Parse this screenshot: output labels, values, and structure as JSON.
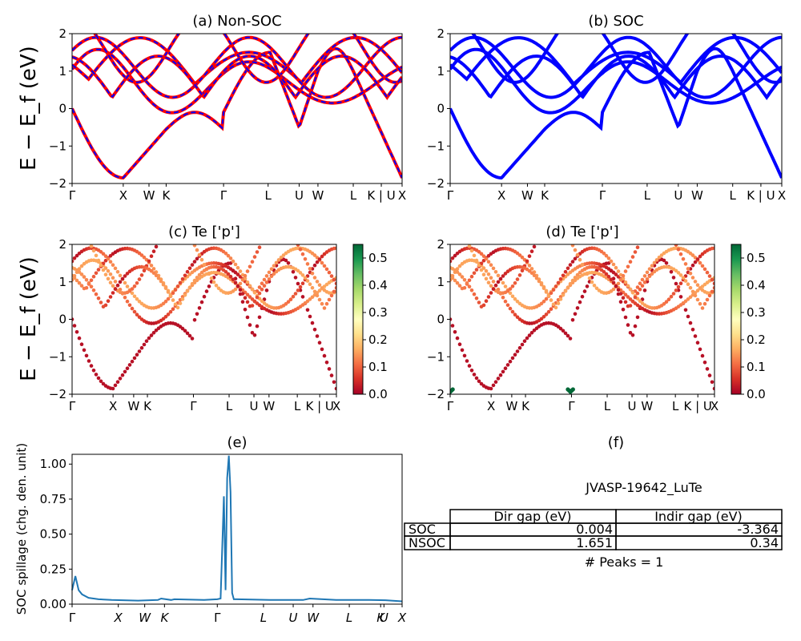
{
  "figure": {
    "band_ylabel": "E − E_f (eV)",
    "spillage_ylabel": "SOC spillage (chg. den. unit)",
    "band_yticks": [
      "−2",
      "−1",
      "0",
      "1",
      "2"
    ]
  },
  "kpath": {
    "labels": [
      "Γ",
      "X",
      "W",
      "K",
      "Γ",
      "L",
      "U",
      "W",
      "L",
      "K | U",
      "X"
    ],
    "positions": [
      0.0,
      0.155,
      0.233,
      0.285,
      0.459,
      0.594,
      0.688,
      0.745,
      0.852,
      0.937,
      1.0
    ]
  },
  "colorbar": {
    "ticks": [
      "0.0",
      "0.1",
      "0.2",
      "0.3",
      "0.4",
      "0.5"
    ],
    "max": 0.55,
    "colors": [
      "#a50026",
      "#d73027",
      "#f46d43",
      "#fdae61",
      "#fee08b",
      "#ffffbf",
      "#d9ef8b",
      "#a6d96a",
      "#66bd63",
      "#1a9850",
      "#006837"
    ]
  },
  "chart_data": [
    {
      "type": "line",
      "title": "(a) Non-SOC",
      "ylim": [
        -2,
        2
      ],
      "xticks": [
        "Γ",
        "X",
        "W",
        "K",
        "Γ",
        "L",
        "U",
        "W",
        "L",
        "K | U",
        "X"
      ],
      "series": [
        {
          "color": "#ff0000",
          "style": "solid",
          "width": 4
        },
        {
          "color": "#0000ff",
          "style": "dashed",
          "width": 2
        }
      ]
    },
    {
      "type": "line",
      "title": "(b) SOC",
      "ylim": [
        -2,
        2
      ],
      "xticks": [
        "Γ",
        "X",
        "W",
        "K",
        "Γ",
        "L",
        "U",
        "W",
        "L",
        "K | U",
        "X"
      ],
      "series": [
        {
          "color": "#0000ff",
          "style": "solid",
          "width": 4
        }
      ]
    },
    {
      "type": "scatter",
      "title": "(c)  Te ['p']",
      "ylim": [
        -2,
        2
      ],
      "xticks": [
        "Γ",
        "X",
        "W",
        "K",
        "Γ",
        "L",
        "U",
        "W",
        "L",
        "K | U",
        "X"
      ],
      "colorbar_range": [
        0.0,
        0.55
      ]
    },
    {
      "type": "scatter",
      "title": "(d) Te ['p']",
      "ylim": [
        -2,
        2
      ],
      "xticks": [
        "Γ",
        "X",
        "W",
        "K",
        "Γ",
        "L",
        "U",
        "W",
        "L",
        "K | U",
        "X"
      ],
      "colorbar_range": [
        0.0,
        0.55
      ]
    },
    {
      "type": "line",
      "title": "(e)",
      "ylabel": "SOC spillage (chg. den. unit)",
      "ylim": [
        0,
        1.07
      ],
      "yticks": [
        "0.00",
        "0.25",
        "0.50",
        "0.75",
        "1.00"
      ],
      "xticks": [
        "Γ",
        "X",
        "W",
        "K",
        "Γ",
        "L",
        "U",
        "W",
        "L",
        "K",
        "U",
        "X"
      ],
      "x": [
        0,
        0.01,
        0.02,
        0.03,
        0.05,
        0.08,
        0.12,
        0.2,
        0.26,
        0.27,
        0.3,
        0.31,
        0.4,
        0.44,
        0.45,
        0.46,
        0.465,
        0.47,
        0.475,
        0.48,
        0.485,
        0.49,
        0.5,
        0.6,
        0.7,
        0.72,
        0.8,
        0.9,
        0.95,
        1.0
      ],
      "values": [
        0.1,
        0.2,
        0.1,
        0.07,
        0.045,
        0.035,
        0.03,
        0.025,
        0.03,
        0.04,
        0.03,
        0.035,
        0.03,
        0.035,
        0.04,
        0.77,
        0.1,
        0.9,
        1.06,
        0.8,
        0.08,
        0.035,
        0.035,
        0.03,
        0.03,
        0.04,
        0.03,
        0.03,
        0.028,
        0.02
      ],
      "color": "#1f77b4"
    },
    {
      "type": "table",
      "title": "(f)",
      "caption": "JVASP-19642_LuTe",
      "columns": [
        "Dir gap (eV)",
        "Indir gap (eV)"
      ],
      "rows": [
        {
          "label": "SOC",
          "values": [
            "0.004",
            "-3.364"
          ]
        },
        {
          "label": "NSOC",
          "values": [
            "1.651",
            "0.34"
          ]
        }
      ],
      "footer": "# Peaks = 1"
    }
  ]
}
